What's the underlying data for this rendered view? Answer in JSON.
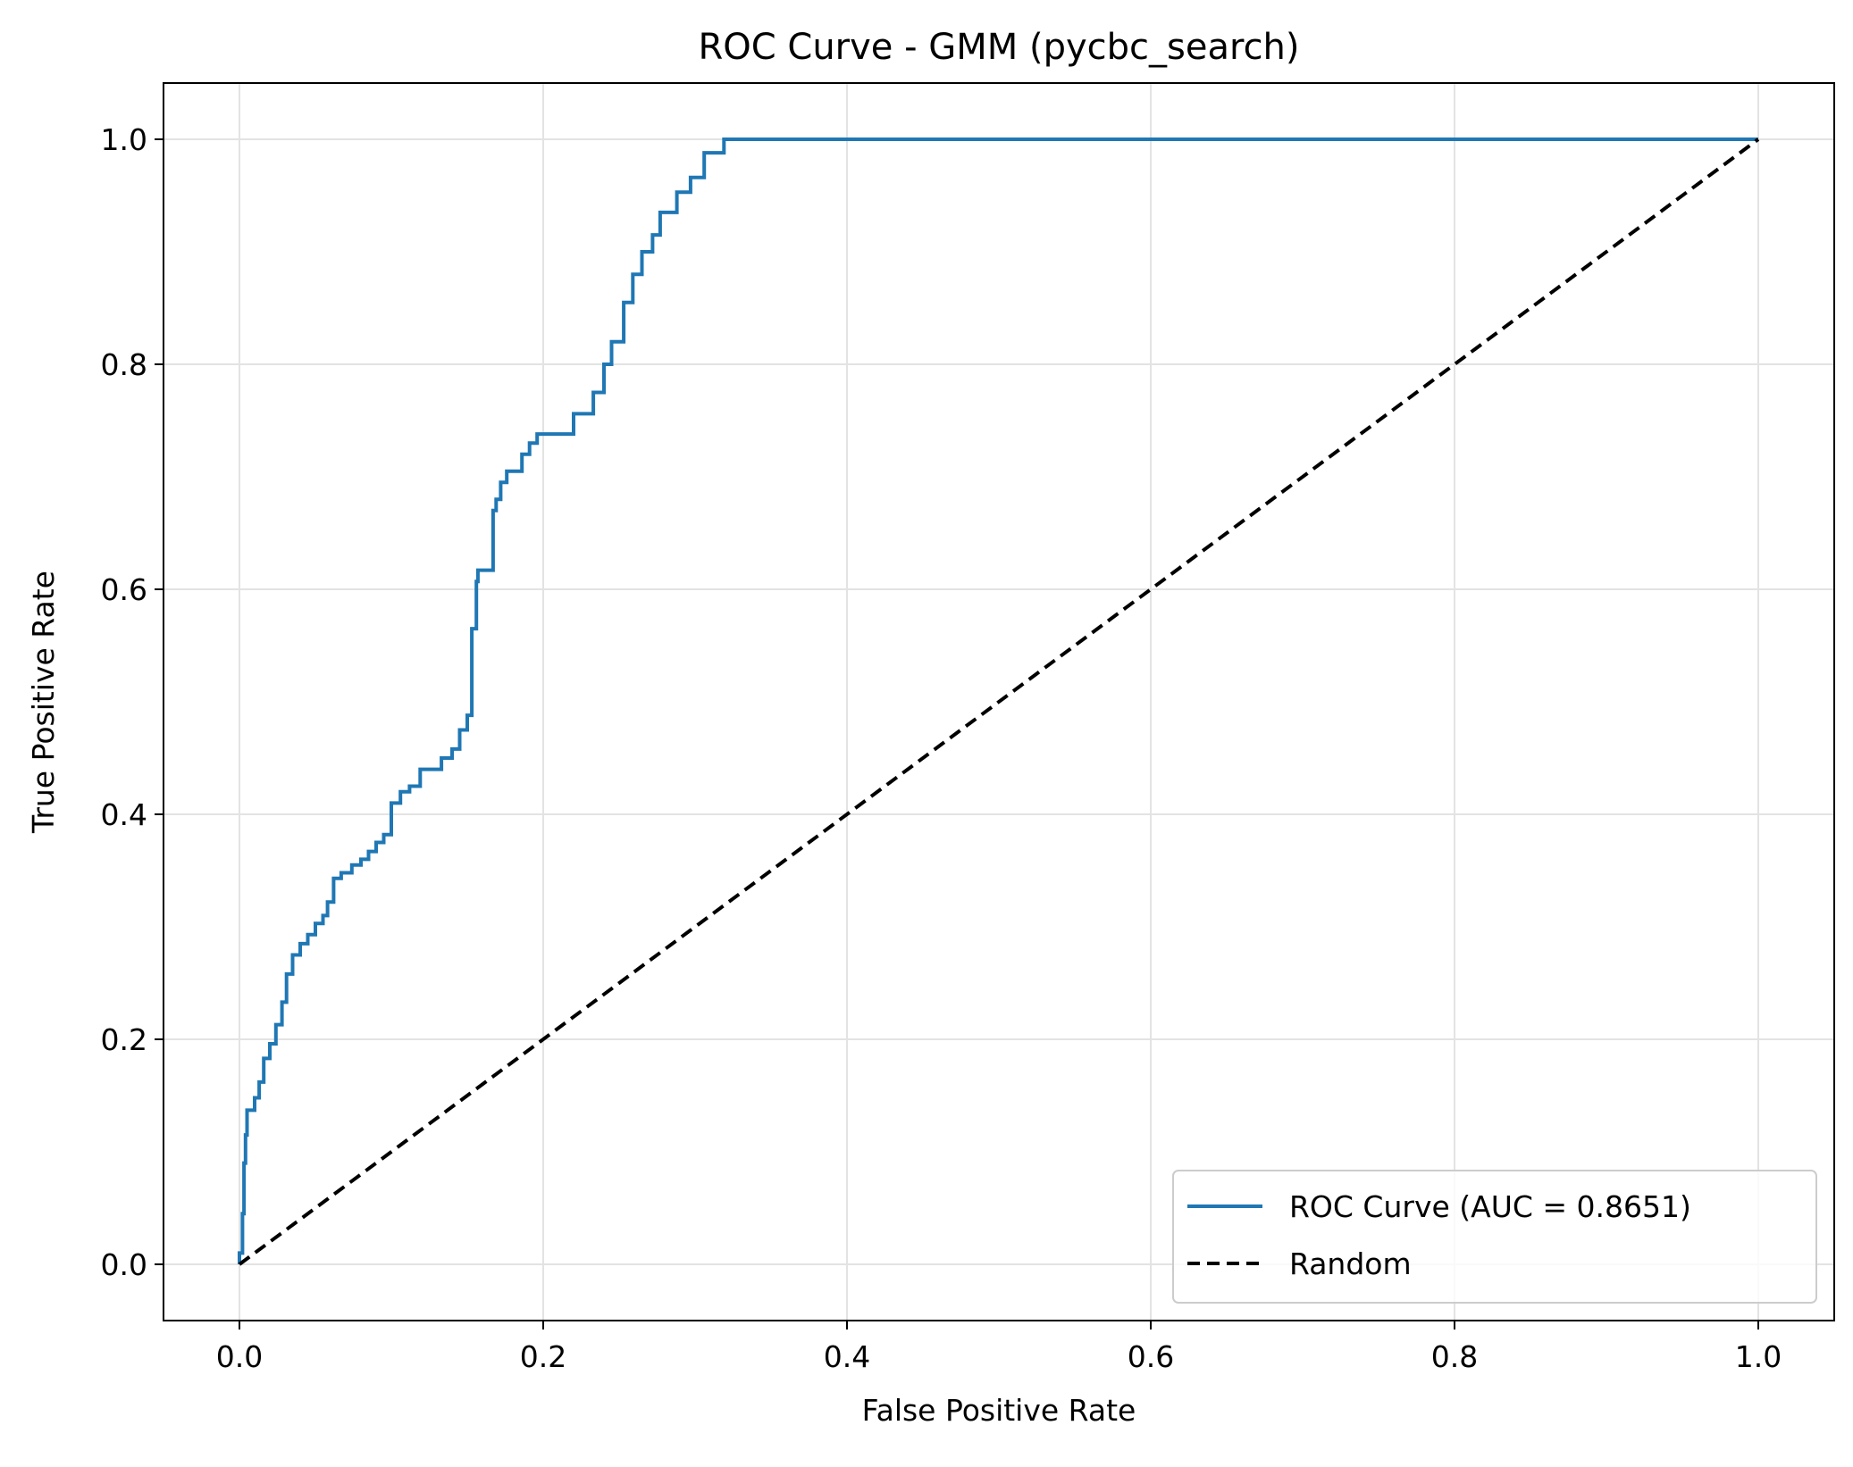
{
  "chart_data": {
    "type": "line",
    "title": "ROC Curve - GMM (pycbc_search)",
    "xlabel": "False Positive Rate",
    "ylabel": "True Positive Rate",
    "xlim": [
      -0.05,
      1.05
    ],
    "ylim": [
      -0.05,
      1.05
    ],
    "xticks": [
      0.0,
      0.2,
      0.4,
      0.6,
      0.8,
      1.0
    ],
    "yticks": [
      0.0,
      0.2,
      0.4,
      0.6,
      0.8,
      1.0
    ],
    "xtick_labels": [
      "0.0",
      "0.2",
      "0.4",
      "0.6",
      "0.8",
      "1.0"
    ],
    "ytick_labels": [
      "0.0",
      "0.2",
      "0.4",
      "0.6",
      "0.8",
      "1.0"
    ],
    "grid": true,
    "legend_position": "lower right",
    "series": [
      {
        "name": "ROC Curve (AUC = 0.8651)",
        "color": "#1f77b4",
        "line_style": "solid",
        "x": [
          0.0,
          0.0,
          0.002,
          0.002,
          0.003,
          0.003,
          0.004,
          0.004,
          0.005,
          0.005,
          0.01,
          0.01,
          0.013,
          0.013,
          0.016,
          0.016,
          0.02,
          0.02,
          0.024,
          0.024,
          0.028,
          0.028,
          0.031,
          0.031,
          0.035,
          0.035,
          0.04,
          0.04,
          0.045,
          0.045,
          0.05,
          0.05,
          0.055,
          0.055,
          0.058,
          0.058,
          0.062,
          0.062,
          0.067,
          0.067,
          0.074,
          0.074,
          0.08,
          0.08,
          0.085,
          0.085,
          0.09,
          0.09,
          0.095,
          0.095,
          0.1,
          0.1,
          0.106,
          0.106,
          0.112,
          0.112,
          0.119,
          0.119,
          0.133,
          0.133,
          0.14,
          0.14,
          0.145,
          0.145,
          0.15,
          0.15,
          0.153,
          0.153,
          0.156,
          0.156,
          0.157,
          0.157,
          0.167,
          0.167,
          0.169,
          0.169,
          0.172,
          0.172,
          0.176,
          0.176,
          0.186,
          0.186,
          0.191,
          0.191,
          0.196,
          0.196,
          0.22,
          0.22,
          0.233,
          0.233,
          0.24,
          0.24,
          0.245,
          0.245,
          0.253,
          0.253,
          0.259,
          0.259,
          0.265,
          0.265,
          0.272,
          0.272,
          0.277,
          0.277,
          0.288,
          0.288,
          0.297,
          0.297,
          0.306,
          0.306,
          0.319,
          0.319,
          0.325,
          1.0
        ],
        "y": [
          0.0,
          0.01,
          0.01,
          0.045,
          0.045,
          0.09,
          0.09,
          0.115,
          0.115,
          0.137,
          0.137,
          0.148,
          0.148,
          0.162,
          0.162,
          0.183,
          0.183,
          0.196,
          0.196,
          0.213,
          0.213,
          0.233,
          0.233,
          0.258,
          0.258,
          0.275,
          0.275,
          0.285,
          0.285,
          0.293,
          0.293,
          0.303,
          0.303,
          0.31,
          0.31,
          0.322,
          0.322,
          0.343,
          0.343,
          0.348,
          0.348,
          0.355,
          0.355,
          0.36,
          0.36,
          0.367,
          0.367,
          0.375,
          0.375,
          0.382,
          0.382,
          0.41,
          0.41,
          0.42,
          0.42,
          0.425,
          0.425,
          0.44,
          0.44,
          0.45,
          0.45,
          0.458,
          0.458,
          0.475,
          0.475,
          0.488,
          0.488,
          0.565,
          0.565,
          0.607,
          0.607,
          0.617,
          0.617,
          0.67,
          0.67,
          0.68,
          0.68,
          0.695,
          0.695,
          0.705,
          0.705,
          0.72,
          0.72,
          0.73,
          0.73,
          0.738,
          0.738,
          0.756,
          0.756,
          0.775,
          0.775,
          0.8,
          0.8,
          0.82,
          0.82,
          0.855,
          0.855,
          0.88,
          0.88,
          0.9,
          0.9,
          0.915,
          0.915,
          0.935,
          0.935,
          0.953,
          0.953,
          0.966,
          0.966,
          0.988,
          0.988,
          1.0,
          1.0,
          1.0
        ]
      },
      {
        "name": "Random",
        "color": "#000000",
        "line_style": "dashed",
        "x": [
          0.0,
          1.0
        ],
        "y": [
          0.0,
          1.0
        ]
      }
    ]
  }
}
